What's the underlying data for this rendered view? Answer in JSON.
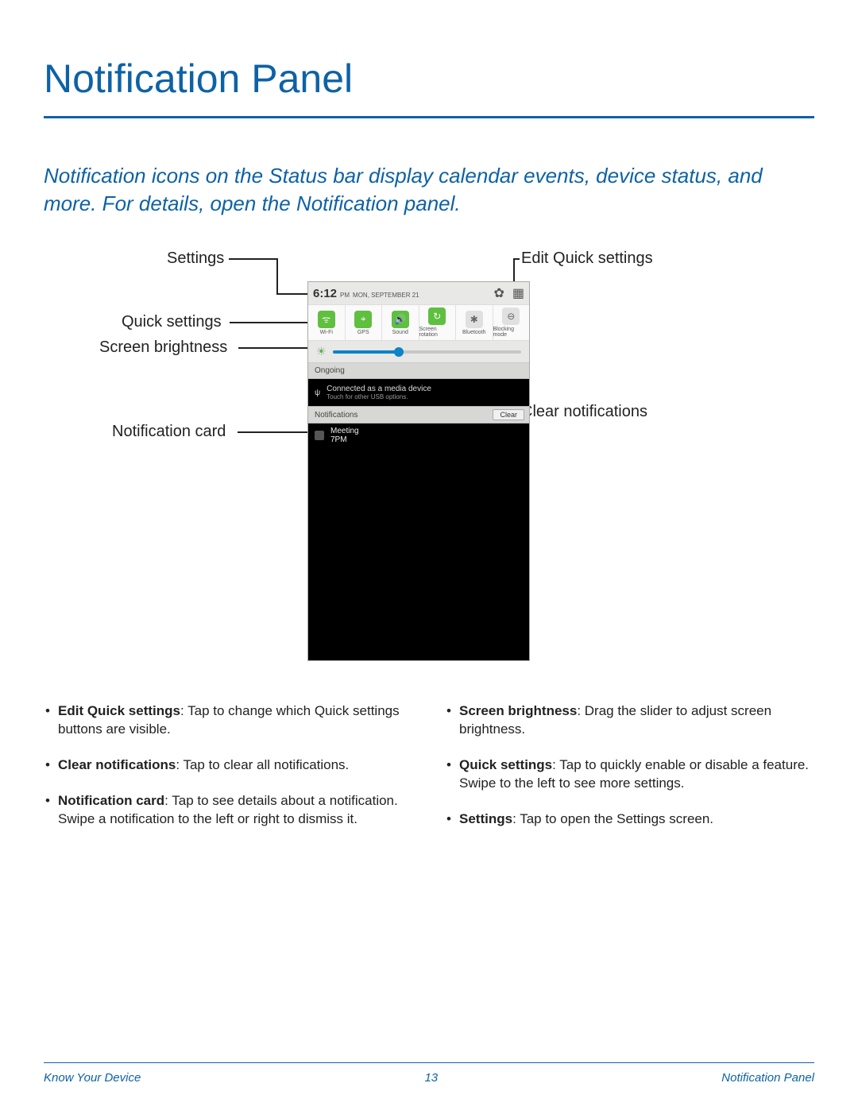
{
  "page": {
    "title": "Notification Panel",
    "intro": "Notification icons on the Status bar display calendar events, device status, and more. For details, open the Notification panel.",
    "accent_color": "#0d62a6"
  },
  "callouts": {
    "settings": "Settings",
    "edit_quick": "Edit Quick settings",
    "quick_settings": "Quick settings",
    "screen_brightness": "Screen brightness",
    "notification_card": "Notification card",
    "clear_notifications": "Clear notifications"
  },
  "phone": {
    "time": "6:12",
    "ampm": "PM",
    "date": "MON, SEPTEMBER 21",
    "settings_glyph": "✿",
    "grid_glyph": "▦",
    "qs_tiles": [
      {
        "label": "Wi-Fi",
        "glyph": "ᯤ",
        "color": "green"
      },
      {
        "label": "GPS",
        "glyph": "⌖",
        "color": "green"
      },
      {
        "label": "Sound",
        "glyph": "🔊",
        "color": "green"
      },
      {
        "label": "Screen rotation",
        "glyph": "↻",
        "color": "green"
      },
      {
        "label": "Bluetooth",
        "glyph": "✱",
        "color": "grey"
      },
      {
        "label": "Blocking mode",
        "glyph": "⊖",
        "color": "grey"
      }
    ],
    "brightness_pct": 35,
    "ongoing_header": "Ongoing",
    "ongoing_title": "Connected as a media device",
    "ongoing_sub": "Touch for other USB options.",
    "usb_glyph": "ψ",
    "notifications_header": "Notifications",
    "clear_label": "Clear",
    "notif_title": "Meeting",
    "notif_time": "7PM"
  },
  "descriptions": {
    "left": [
      {
        "term": "Edit Quick settings",
        "text": ": Tap to change which Quick settings buttons are visible."
      },
      {
        "term": "Clear notifications",
        "text": ": Tap to clear all notifications."
      },
      {
        "term": "Notification card",
        "text": ": Tap to see details about a notification. Swipe a notification to the left or right to dismiss it."
      }
    ],
    "right": [
      {
        "term": "Screen brightness",
        "text": ": Drag the slider to adjust screen brightness."
      },
      {
        "term": "Quick settings",
        "text": ": Tap to quickly enable or disable a feature. Swipe to the left to see more settings."
      },
      {
        "term": "Settings",
        "text": ": Tap to open the Settings screen."
      }
    ]
  },
  "footer": {
    "left": "Know Your Device",
    "page_number": "13",
    "right": "Notification Panel"
  }
}
